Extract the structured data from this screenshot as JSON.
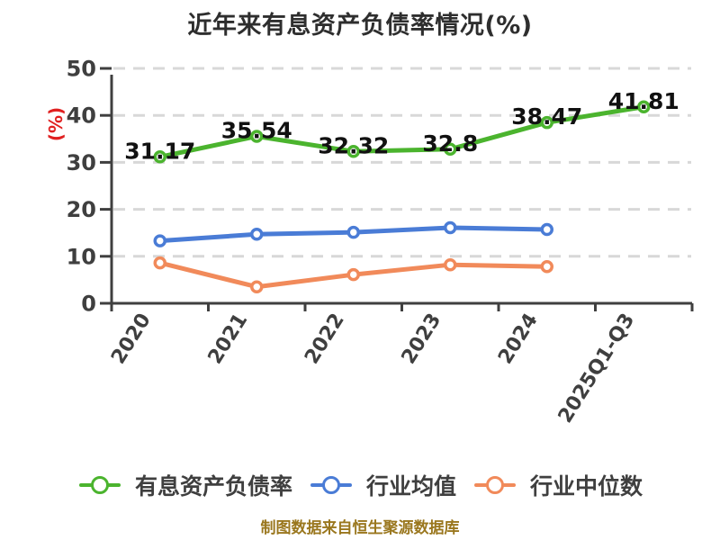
{
  "title": "近年来有息资产负债率情况(%)",
  "y_axis_unit": "(%)",
  "source_note": "制图数据来自恒生聚源数据库",
  "colors": {
    "background": "#ffffff",
    "title_text": "#2e2e2e",
    "axis": "#3f3f3f",
    "tick_label": "#3f3f3f",
    "grid": "#d8d8d8",
    "data_label": "#111111",
    "unit_label": "#e02121",
    "legend_text": "#3f3f3f",
    "source_note": "#9a771e",
    "series_green": "#4bb42e",
    "series_blue": "#4a7cd6",
    "series_orange": "#f18a5a"
  },
  "chart_data": {
    "type": "line",
    "title": "近年来有息资产负债率情况(%)",
    "categories": [
      "2020",
      "2021",
      "2022",
      "2023",
      "2024",
      "2025Q1-Q3"
    ],
    "series": [
      {
        "name": "有息资产负债率",
        "color": "#4bb42e",
        "values": [
          31.17,
          35.54,
          32.32,
          32.8,
          38.47,
          41.81
        ],
        "point_labels": true
      },
      {
        "name": "行业均值",
        "color": "#4a7cd6",
        "values": [
          13.3,
          14.7,
          15.1,
          16.1,
          15.7
        ],
        "point_labels": false
      },
      {
        "name": "行业中位数",
        "color": "#f18a5a",
        "values": [
          8.6,
          3.5,
          6.1,
          8.2,
          7.8
        ],
        "point_labels": false
      }
    ],
    "xlabel": "",
    "ylabel": "(%)",
    "ylim": [
      0,
      50
    ],
    "y_ticks": [
      0,
      10,
      20,
      30,
      40,
      50
    ],
    "grid": "horizontal-dashed",
    "legend_position": "bottom",
    "x_tick_rotation_deg": -58
  }
}
